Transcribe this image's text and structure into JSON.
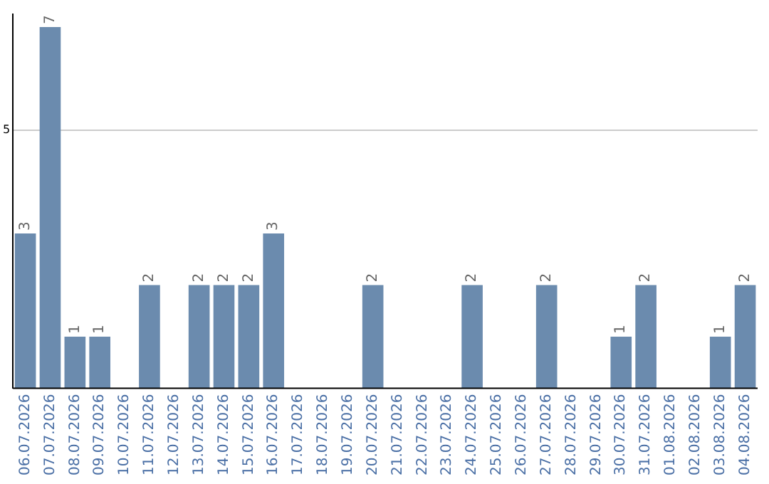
{
  "chart_data": {
    "type": "bar",
    "categories": [
      "06.07.2026",
      "07.07.2026",
      "08.07.2026",
      "09.07.2026",
      "10.07.2026",
      "11.07.2026",
      "12.07.2026",
      "13.07.2026",
      "14.07.2026",
      "15.07.2026",
      "16.07.2026",
      "17.07.2026",
      "18.07.2026",
      "19.07.2026",
      "20.07.2026",
      "21.07.2026",
      "22.07.2026",
      "23.07.2026",
      "24.07.2026",
      "25.07.2026",
      "26.07.2026",
      "27.07.2026",
      "28.07.2026",
      "29.07.2026",
      "30.07.2026",
      "31.07.2026",
      "01.08.2026",
      "02.08.2026",
      "03.08.2026",
      "04.08.2026"
    ],
    "values": [
      3,
      7,
      1,
      1,
      0,
      2,
      0,
      2,
      2,
      2,
      3,
      0,
      0,
      0,
      2,
      0,
      0,
      0,
      2,
      0,
      0,
      2,
      0,
      0,
      1,
      2,
      0,
      0,
      1,
      2
    ],
    "value_labels": [
      "3",
      "7",
      "1",
      "1",
      null,
      "2",
      null,
      "2",
      "2",
      "2",
      "3",
      null,
      null,
      null,
      "2",
      null,
      null,
      null,
      "2",
      null,
      null,
      "2",
      null,
      null,
      "1",
      "2",
      null,
      null,
      "1",
      "2"
    ],
    "color": "#6b8bae",
    "ylim": [
      0,
      7.25
    ],
    "yticks": [
      5
    ],
    "grid": "y",
    "legend": false
  }
}
